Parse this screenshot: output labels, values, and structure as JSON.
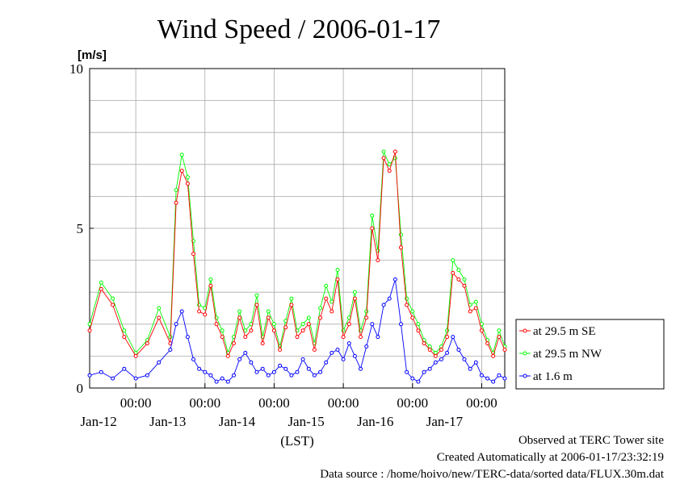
{
  "chart_data": {
    "type": "line",
    "title": "Wind Speed / 2006-01-17",
    "ylabel": "[m/s]",
    "xlabel": "(LST)",
    "ylim": [
      0,
      10
    ],
    "y_ticks": [
      "0",
      "5",
      "10"
    ],
    "x_start": "2006-01-11T08:00",
    "x_end": "2006-01-17T08:00",
    "x_tick_time_label": "00:00",
    "x_ticks": [
      {
        "time": "2006-01-12T00:00",
        "date_label": "Jan-12"
      },
      {
        "time": "2006-01-13T00:00",
        "date_label": "Jan-13"
      },
      {
        "time": "2006-01-14T00:00",
        "date_label": "Jan-14"
      },
      {
        "time": "2006-01-15T00:00",
        "date_label": "Jan-15"
      },
      {
        "time": "2006-01-16T00:00",
        "date_label": "Jan-16"
      },
      {
        "time": "2006-01-17T00:00",
        "date_label": "Jan-17"
      }
    ],
    "grid": true,
    "legend_position": "right",
    "series": [
      {
        "name": "at 29.5 m SE",
        "color": "#ff0000",
        "points": [
          [
            "2006-01-11T08:00",
            1.8
          ],
          [
            "2006-01-11T12:00",
            3.1
          ],
          [
            "2006-01-11T16:00",
            2.6
          ],
          [
            "2006-01-11T20:00",
            1.6
          ],
          [
            "2006-01-12T00:00",
            1.0
          ],
          [
            "2006-01-12T04:00",
            1.4
          ],
          [
            "2006-01-12T08:00",
            2.2
          ],
          [
            "2006-01-12T12:00",
            1.4
          ],
          [
            "2006-01-12T14:00",
            5.8
          ],
          [
            "2006-01-12T16:00",
            6.8
          ],
          [
            "2006-01-12T18:00",
            6.4
          ],
          [
            "2006-01-12T20:00",
            4.2
          ],
          [
            "2006-01-12T22:00",
            2.4
          ],
          [
            "2006-01-13T00:00",
            2.3
          ],
          [
            "2006-01-13T02:00",
            3.2
          ],
          [
            "2006-01-13T04:00",
            2.0
          ],
          [
            "2006-01-13T06:00",
            1.6
          ],
          [
            "2006-01-13T08:00",
            1.0
          ],
          [
            "2006-01-13T10:00",
            1.4
          ],
          [
            "2006-01-13T12:00",
            2.2
          ],
          [
            "2006-01-13T14:00",
            1.6
          ],
          [
            "2006-01-13T16:00",
            1.8
          ],
          [
            "2006-01-13T18:00",
            2.6
          ],
          [
            "2006-01-13T20:00",
            1.4
          ],
          [
            "2006-01-13T22:00",
            2.2
          ],
          [
            "2006-01-14T00:00",
            1.8
          ],
          [
            "2006-01-14T02:00",
            1.2
          ],
          [
            "2006-01-14T04:00",
            1.9
          ],
          [
            "2006-01-14T06:00",
            2.6
          ],
          [
            "2006-01-14T08:00",
            1.6
          ],
          [
            "2006-01-14T10:00",
            1.8
          ],
          [
            "2006-01-14T12:00",
            2.0
          ],
          [
            "2006-01-14T14:00",
            1.2
          ],
          [
            "2006-01-14T16:00",
            2.2
          ],
          [
            "2006-01-14T18:00",
            2.8
          ],
          [
            "2006-01-14T20:00",
            2.4
          ],
          [
            "2006-01-14T22:00",
            3.4
          ],
          [
            "2006-01-15T00:00",
            1.6
          ],
          [
            "2006-01-15T02:00",
            2.0
          ],
          [
            "2006-01-15T04:00",
            2.8
          ],
          [
            "2006-01-15T06:00",
            1.6
          ],
          [
            "2006-01-15T08:00",
            2.2
          ],
          [
            "2006-01-15T10:00",
            5.0
          ],
          [
            "2006-01-15T12:00",
            4.0
          ],
          [
            "2006-01-15T14:00",
            7.2
          ],
          [
            "2006-01-15T16:00",
            6.8
          ],
          [
            "2006-01-15T18:00",
            7.4
          ],
          [
            "2006-01-15T20:00",
            4.4
          ],
          [
            "2006-01-15T22:00",
            2.6
          ],
          [
            "2006-01-16T00:00",
            2.2
          ],
          [
            "2006-01-16T02:00",
            1.8
          ],
          [
            "2006-01-16T04:00",
            1.4
          ],
          [
            "2006-01-16T06:00",
            1.2
          ],
          [
            "2006-01-16T08:00",
            1.0
          ],
          [
            "2006-01-16T10:00",
            1.2
          ],
          [
            "2006-01-16T12:00",
            1.6
          ],
          [
            "2006-01-16T14:00",
            3.6
          ],
          [
            "2006-01-16T16:00",
            3.4
          ],
          [
            "2006-01-16T18:00",
            3.2
          ],
          [
            "2006-01-16T20:00",
            2.4
          ],
          [
            "2006-01-16T22:00",
            2.5
          ],
          [
            "2006-01-17T00:00",
            1.8
          ],
          [
            "2006-01-17T02:00",
            1.4
          ],
          [
            "2006-01-17T04:00",
            1.0
          ],
          [
            "2006-01-17T06:00",
            1.6
          ],
          [
            "2006-01-17T08:00",
            1.2
          ]
        ]
      },
      {
        "name": "at 29.5 m NW",
        "color": "#00ff00",
        "points": [
          [
            "2006-01-11T08:00",
            2.0
          ],
          [
            "2006-01-11T12:00",
            3.3
          ],
          [
            "2006-01-11T16:00",
            2.8
          ],
          [
            "2006-01-11T20:00",
            1.8
          ],
          [
            "2006-01-12T00:00",
            1.1
          ],
          [
            "2006-01-12T04:00",
            1.5
          ],
          [
            "2006-01-12T08:00",
            2.5
          ],
          [
            "2006-01-12T12:00",
            1.6
          ],
          [
            "2006-01-12T14:00",
            6.2
          ],
          [
            "2006-01-12T16:00",
            7.3
          ],
          [
            "2006-01-12T18:00",
            6.6
          ],
          [
            "2006-01-12T20:00",
            4.6
          ],
          [
            "2006-01-12T22:00",
            2.6
          ],
          [
            "2006-01-13T00:00",
            2.5
          ],
          [
            "2006-01-13T02:00",
            3.4
          ],
          [
            "2006-01-13T04:00",
            2.2
          ],
          [
            "2006-01-13T06:00",
            1.8
          ],
          [
            "2006-01-13T08:00",
            1.1
          ],
          [
            "2006-01-13T10:00",
            1.6
          ],
          [
            "2006-01-13T12:00",
            2.4
          ],
          [
            "2006-01-13T14:00",
            1.8
          ],
          [
            "2006-01-13T16:00",
            2.0
          ],
          [
            "2006-01-13T18:00",
            2.9
          ],
          [
            "2006-01-13T20:00",
            1.6
          ],
          [
            "2006-01-13T22:00",
            2.4
          ],
          [
            "2006-01-14T00:00",
            2.0
          ],
          [
            "2006-01-14T02:00",
            1.3
          ],
          [
            "2006-01-14T04:00",
            2.1
          ],
          [
            "2006-01-14T06:00",
            2.8
          ],
          [
            "2006-01-14T08:00",
            1.8
          ],
          [
            "2006-01-14T10:00",
            2.0
          ],
          [
            "2006-01-14T12:00",
            2.2
          ],
          [
            "2006-01-14T14:00",
            1.4
          ],
          [
            "2006-01-14T16:00",
            2.5
          ],
          [
            "2006-01-14T18:00",
            3.2
          ],
          [
            "2006-01-14T20:00",
            2.7
          ],
          [
            "2006-01-14T22:00",
            3.7
          ],
          [
            "2006-01-15T00:00",
            1.8
          ],
          [
            "2006-01-15T02:00",
            2.2
          ],
          [
            "2006-01-15T04:00",
            3.0
          ],
          [
            "2006-01-15T06:00",
            1.8
          ],
          [
            "2006-01-15T08:00",
            2.4
          ],
          [
            "2006-01-15T10:00",
            5.4
          ],
          [
            "2006-01-15T12:00",
            4.3
          ],
          [
            "2006-01-15T14:00",
            7.4
          ],
          [
            "2006-01-15T16:00",
            7.0
          ],
          [
            "2006-01-15T18:00",
            7.2
          ],
          [
            "2006-01-15T20:00",
            4.8
          ],
          [
            "2006-01-15T22:00",
            2.8
          ],
          [
            "2006-01-16T00:00",
            2.4
          ],
          [
            "2006-01-16T02:00",
            2.0
          ],
          [
            "2006-01-16T04:00",
            1.5
          ],
          [
            "2006-01-16T06:00",
            1.3
          ],
          [
            "2006-01-16T08:00",
            1.1
          ],
          [
            "2006-01-16T10:00",
            1.3
          ],
          [
            "2006-01-16T12:00",
            1.8
          ],
          [
            "2006-01-16T14:00",
            4.0
          ],
          [
            "2006-01-16T16:00",
            3.7
          ],
          [
            "2006-01-16T18:00",
            3.4
          ],
          [
            "2006-01-16T20:00",
            2.6
          ],
          [
            "2006-01-16T22:00",
            2.7
          ],
          [
            "2006-01-17T00:00",
            2.0
          ],
          [
            "2006-01-17T02:00",
            1.5
          ],
          [
            "2006-01-17T04:00",
            1.1
          ],
          [
            "2006-01-17T06:00",
            1.8
          ],
          [
            "2006-01-17T08:00",
            1.3
          ]
        ]
      },
      {
        "name": "at 1.6 m",
        "color": "#0000ff",
        "points": [
          [
            "2006-01-11T08:00",
            0.4
          ],
          [
            "2006-01-11T12:00",
            0.5
          ],
          [
            "2006-01-11T16:00",
            0.3
          ],
          [
            "2006-01-11T20:00",
            0.6
          ],
          [
            "2006-01-12T00:00",
            0.3
          ],
          [
            "2006-01-12T04:00",
            0.4
          ],
          [
            "2006-01-12T08:00",
            0.8
          ],
          [
            "2006-01-12T12:00",
            1.2
          ],
          [
            "2006-01-12T14:00",
            2.0
          ],
          [
            "2006-01-12T16:00",
            2.4
          ],
          [
            "2006-01-12T18:00",
            1.6
          ],
          [
            "2006-01-12T20:00",
            0.9
          ],
          [
            "2006-01-12T22:00",
            0.6
          ],
          [
            "2006-01-13T00:00",
            0.5
          ],
          [
            "2006-01-13T02:00",
            0.4
          ],
          [
            "2006-01-13T04:00",
            0.2
          ],
          [
            "2006-01-13T06:00",
            0.3
          ],
          [
            "2006-01-13T08:00",
            0.2
          ],
          [
            "2006-01-13T10:00",
            0.4
          ],
          [
            "2006-01-13T12:00",
            0.9
          ],
          [
            "2006-01-13T14:00",
            1.1
          ],
          [
            "2006-01-13T16:00",
            0.8
          ],
          [
            "2006-01-13T18:00",
            0.5
          ],
          [
            "2006-01-13T20:00",
            0.6
          ],
          [
            "2006-01-13T22:00",
            0.4
          ],
          [
            "2006-01-14T00:00",
            0.5
          ],
          [
            "2006-01-14T02:00",
            0.7
          ],
          [
            "2006-01-14T04:00",
            0.6
          ],
          [
            "2006-01-14T06:00",
            0.4
          ],
          [
            "2006-01-14T08:00",
            0.5
          ],
          [
            "2006-01-14T10:00",
            0.9
          ],
          [
            "2006-01-14T12:00",
            0.6
          ],
          [
            "2006-01-14T14:00",
            0.4
          ],
          [
            "2006-01-14T16:00",
            0.5
          ],
          [
            "2006-01-14T18:00",
            0.8
          ],
          [
            "2006-01-14T20:00",
            1.1
          ],
          [
            "2006-01-14T22:00",
            1.2
          ],
          [
            "2006-01-15T00:00",
            0.9
          ],
          [
            "2006-01-15T02:00",
            1.4
          ],
          [
            "2006-01-15T04:00",
            1.0
          ],
          [
            "2006-01-15T06:00",
            0.6
          ],
          [
            "2006-01-15T08:00",
            1.3
          ],
          [
            "2006-01-15T10:00",
            2.0
          ],
          [
            "2006-01-15T12:00",
            1.6
          ],
          [
            "2006-01-15T14:00",
            2.6
          ],
          [
            "2006-01-15T16:00",
            2.8
          ],
          [
            "2006-01-15T18:00",
            3.4
          ],
          [
            "2006-01-15T20:00",
            2.0
          ],
          [
            "2006-01-15T22:00",
            0.5
          ],
          [
            "2006-01-16T00:00",
            0.3
          ],
          [
            "2006-01-16T02:00",
            0.2
          ],
          [
            "2006-01-16T04:00",
            0.5
          ],
          [
            "2006-01-16T06:00",
            0.6
          ],
          [
            "2006-01-16T08:00",
            0.8
          ],
          [
            "2006-01-16T10:00",
            0.9
          ],
          [
            "2006-01-16T12:00",
            1.1
          ],
          [
            "2006-01-16T14:00",
            1.6
          ],
          [
            "2006-01-16T16:00",
            1.2
          ],
          [
            "2006-01-16T18:00",
            0.9
          ],
          [
            "2006-01-16T20:00",
            0.6
          ],
          [
            "2006-01-16T22:00",
            0.8
          ],
          [
            "2006-01-17T00:00",
            0.4
          ],
          [
            "2006-01-17T02:00",
            0.3
          ],
          [
            "2006-01-17T04:00",
            0.2
          ],
          [
            "2006-01-17T06:00",
            0.4
          ],
          [
            "2006-01-17T08:00",
            0.3
          ]
        ]
      }
    ]
  },
  "footer": {
    "line1": "Observed at TERC Tower site",
    "line2": "Created Automatically at 2006-01-17/23:32:19",
    "line3": "Data source : /home/hoivo/new/TERC-data/sorted  data/FLUX.30m.dat"
  }
}
